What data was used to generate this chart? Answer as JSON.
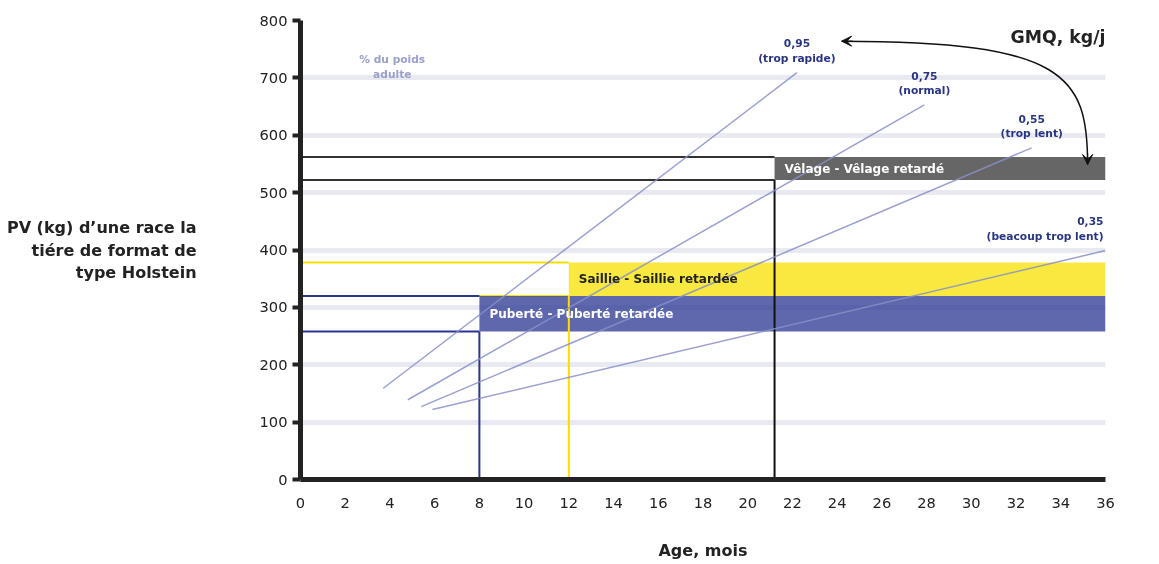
{
  "chart_data": {
    "type": "line",
    "xlabel": "Age, mois",
    "ylabel": "PV (kg) d’une race la tiére de format de type Holstein",
    "xlim": [
      0,
      36
    ],
    "ylim": [
      0,
      800
    ],
    "xticks": [
      0,
      2,
      4,
      6,
      8,
      10,
      12,
      14,
      16,
      18,
      20,
      22,
      24,
      26,
      28,
      30,
      32,
      34,
      36
    ],
    "yticks": [
      0,
      100,
      200,
      300,
      400,
      500,
      600,
      700,
      800
    ],
    "grid": "y",
    "legend": false,
    "marker": "none",
    "line_style": "solid",
    "series": [
      {
        "name": "0,95\n(trop rapide)",
        "color": "#8890c8",
        "x": [
          3.7,
          22.2
        ],
        "values": [
          159,
          709
        ]
      },
      {
        "name": "0,75\n(normal)",
        "color": "#8890c8",
        "x": [
          4.8,
          27.9
        ],
        "values": [
          139,
          653
        ]
      },
      {
        "name": "0,55\n(trop lent)",
        "color": "#8890c8",
        "x": [
          5.4,
          32.7
        ],
        "values": [
          127,
          578
        ]
      },
      {
        "name": "0,35\n(beacoup trop lent)",
        "color": "#8890c8",
        "x": [
          5.9,
          36
        ],
        "values": [
          122,
          399
        ]
      }
    ],
    "bands": [
      {
        "axis": "y",
        "from": 522,
        "to": 562,
        "label": "Vêlage - Vêlage retardé",
        "color": "#333333"
      },
      {
        "axis": "y",
        "from": 320,
        "to": 378,
        "label": "Saillie - Saillie retardée",
        "color": "#f5e000"
      },
      {
        "axis": "y",
        "from": 258,
        "to": 320,
        "label": "Puberté - Puberté retardée",
        "color": "#2a3590"
      }
    ],
    "ref_lines": [
      {
        "axis": "x",
        "value": 21.2,
        "color": "#111111"
      },
      {
        "axis": "x",
        "value": 12,
        "color": "#f5e000"
      },
      {
        "axis": "x",
        "value": 8,
        "color": "#2a3590"
      }
    ],
    "annotations": [
      "GMQ, kg/j",
      "% du poids adulte"
    ]
  }
}
